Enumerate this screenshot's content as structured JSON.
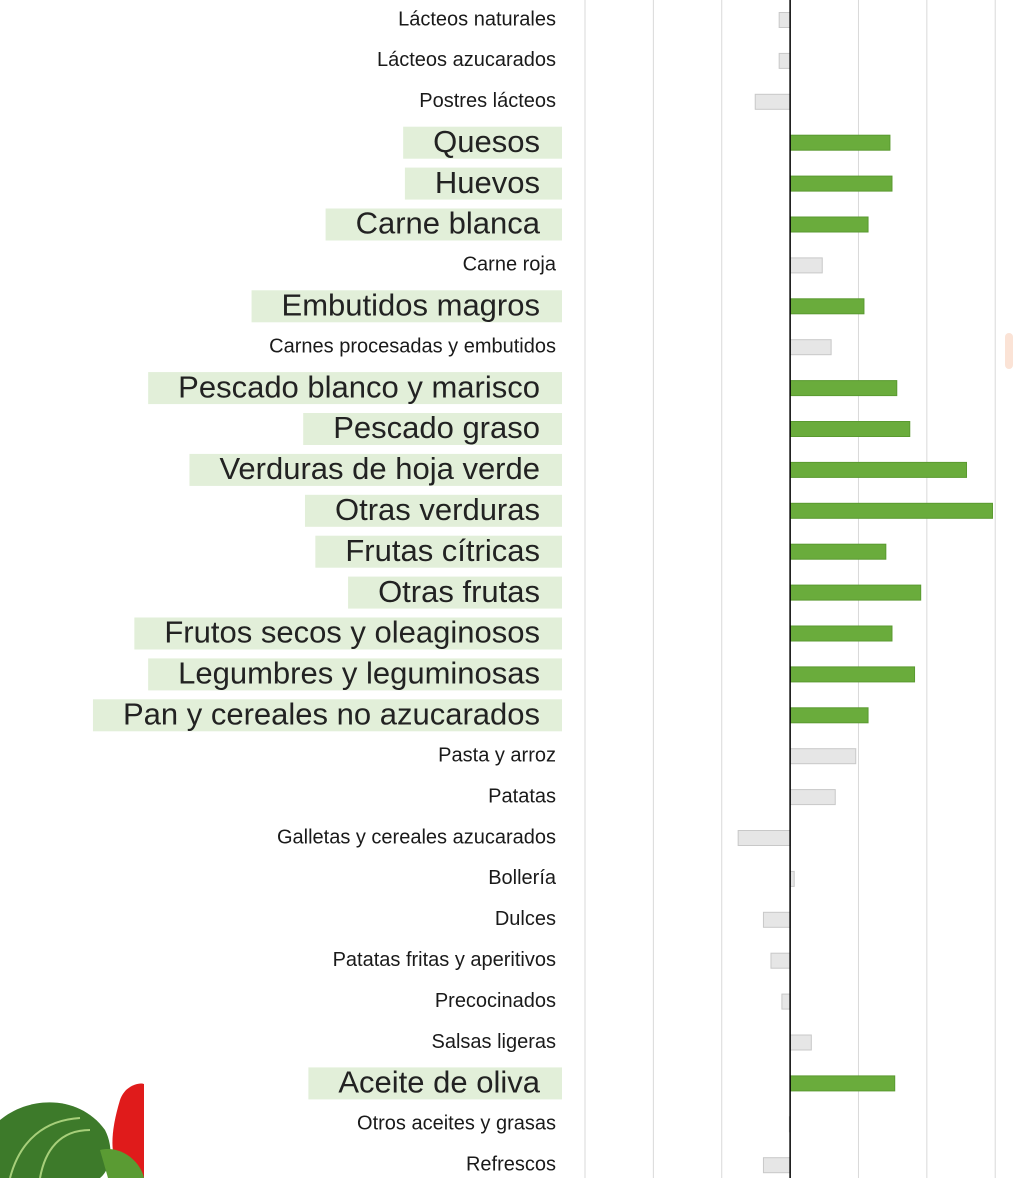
{
  "chart_data": {
    "type": "bar",
    "orientation": "horizontal",
    "categories": [
      "Lácteos naturales",
      "Lácteos azucarados",
      "Postres lácteos",
      "Quesos",
      "Huevos",
      "Carne blanca",
      "Carne roja",
      "Embutidos magros",
      "Carnes procesadas y embutidos",
      "Pescado blanco y marisco",
      "Pescado graso",
      "Verduras de hoja verde",
      "Otras verduras",
      "Frutas cítricas",
      "Otras frutas",
      "Frutos secos y oleaginosos",
      "Legumbres y leguminosas",
      "Pan y cereales no azucarados",
      "Pasta y arroz",
      "Patatas",
      "Galletas y cereales azucarados",
      "Bollería",
      "Dulces",
      "Patatas fritas y aperitivos",
      "Precocinados",
      "Salsas ligeras",
      "Aceite de oliva",
      "Otros aceites y grasas",
      "Refrescos"
    ],
    "values": [
      -0.16,
      -0.16,
      -0.51,
      1.46,
      1.49,
      1.14,
      0.47,
      1.08,
      0.6,
      1.56,
      1.75,
      2.58,
      2.96,
      1.4,
      1.91,
      1.49,
      1.82,
      1.14,
      0.96,
      0.66,
      -0.76,
      0.06,
      -0.39,
      -0.28,
      -0.12,
      0.31,
      1.53,
      -0.01,
      -0.39
    ],
    "color": "#e6e6e6",
    "colors": [
      "#e6e6e6",
      "#e6e6e6",
      "#e6e6e6",
      "#6aac3c",
      "#6aac3c",
      "#6aac3c",
      "#e6e6e6",
      "#6aac3c",
      "#e6e6e6",
      "#6aac3c",
      "#6aac3c",
      "#6aac3c",
      "#6aac3c",
      "#6aac3c",
      "#6aac3c",
      "#6aac3c",
      "#6aac3c",
      "#6aac3c",
      "#e6e6e6",
      "#e6e6e6",
      "#e6e6e6",
      "#e6e6e6",
      "#e6e6e6",
      "#e6e6e6",
      "#e6e6e6",
      "#e6e6e6",
      "#6aac3c",
      "#e6e6e6",
      "#e6e6e6"
    ],
    "xlim": [
      -3,
      3.26
    ],
    "xticks": [
      -3,
      -2,
      -1,
      0,
      1,
      2,
      3
    ],
    "grid": true
  }
}
